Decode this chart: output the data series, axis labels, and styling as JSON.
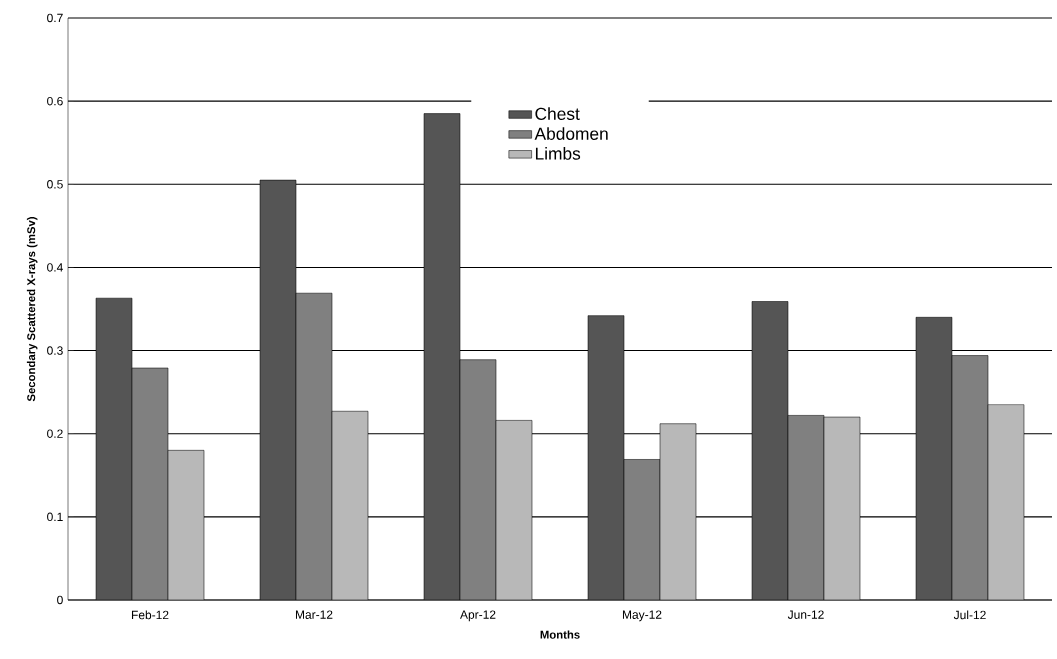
{
  "chart_data": {
    "type": "bar",
    "xlabel": "Months",
    "ylabel": "Secondary Scattered X-rays (mSv)",
    "categories": [
      "Feb-12",
      "Mar-12",
      "Apr-12",
      "May-12",
      "Jun-12",
      "Jul-12"
    ],
    "series": [
      {
        "name": "Chest",
        "color": "#555555",
        "values": [
          0.363,
          0.505,
          0.585,
          0.342,
          0.359,
          0.34
        ]
      },
      {
        "name": "Abdomen",
        "color": "#808080",
        "values": [
          0.279,
          0.369,
          0.289,
          0.169,
          0.222,
          0.294
        ]
      },
      {
        "name": "Limbs",
        "color": "#b8b8b8",
        "values": [
          0.18,
          0.227,
          0.216,
          0.212,
          0.22,
          0.235
        ]
      }
    ],
    "ylim": [
      0,
      0.7
    ],
    "yticks": [
      0,
      0.1,
      0.2,
      0.3,
      0.4,
      0.5,
      0.6,
      0.7
    ],
    "grid": "y",
    "legend": "top"
  }
}
